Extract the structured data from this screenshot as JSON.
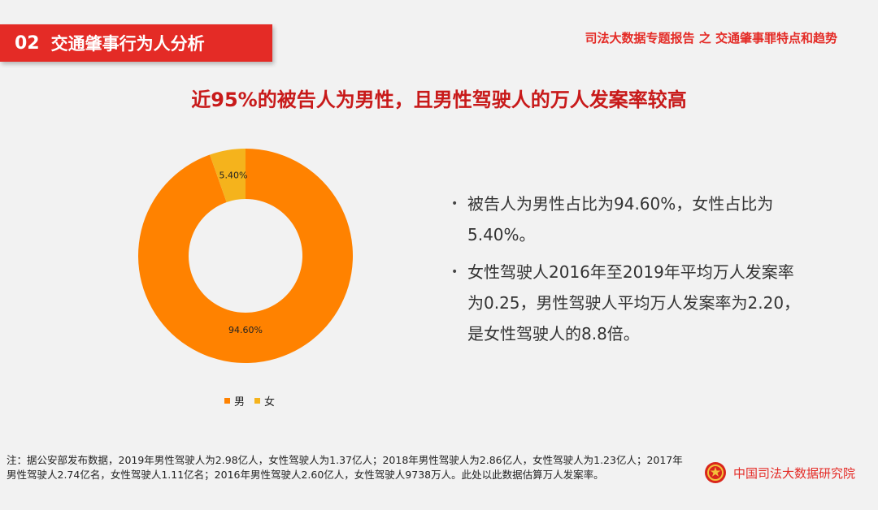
{
  "header": {
    "section_number": "02",
    "section_title": "交通肇事行为人分析",
    "report_title": "司法大数据专题报告 之 交通肇事罪特点和趋势"
  },
  "headline": "近95%的被告人为男性，且男性驾驶人的万人发案率较高",
  "chart_data": {
    "type": "pie",
    "donut": true,
    "categories": [
      "男",
      "女"
    ],
    "values": [
      94.6,
      5.4
    ],
    "labels": [
      "94.60%",
      "5.40%"
    ],
    "colors": [
      "#ff8200",
      "#f5b31c"
    ],
    "legend": "bottom"
  },
  "bullets": [
    "被告人为男性占比为94.60%，女性占比为5.40%。",
    "女性驾驶人2016年至2019年平均万人发案率为0.25，男性驾驶人平均万人发案率为2.20，是女性驾驶人的8.8倍。"
  ],
  "footnote": "注：据公安部发布数据，2019年男性驾驶人为2.98亿人，女性驾驶人为1.37亿人；2018年男性驾驶人为2.86亿人，女性驾驶人为1.23亿人；2017年男性驾驶人2.74亿名，女性驾驶人1.11亿名；2016年男性驾驶人2.60亿人，女性驾驶人9738万人。此处以此数据估算万人发案率。",
  "org": {
    "name": "中国司法大数据研究院",
    "icon": "national-emblem-icon"
  },
  "colors": {
    "accent": "#e42b26",
    "headline": "#c81a1a"
  }
}
